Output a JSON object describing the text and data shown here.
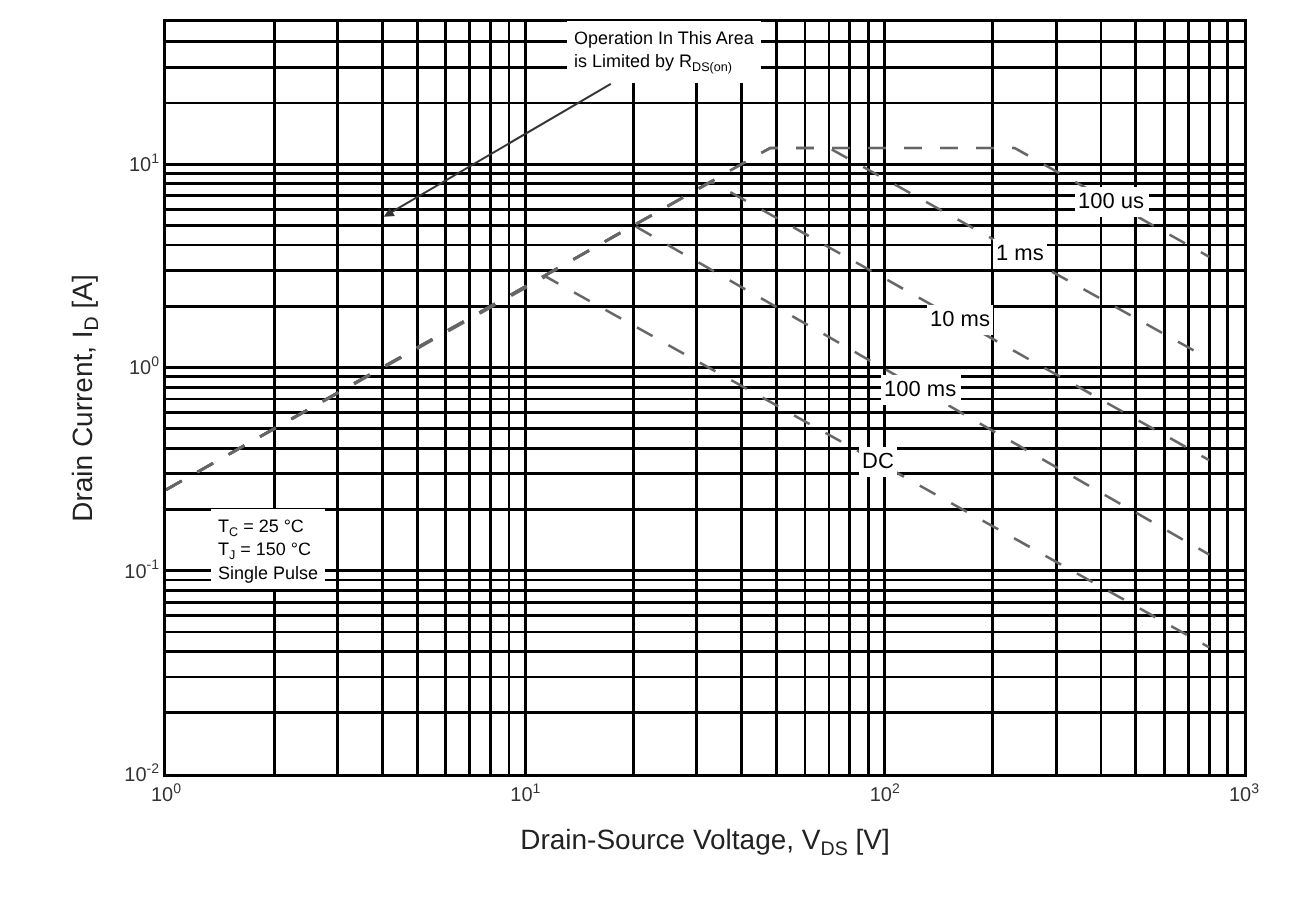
{
  "chart_data": {
    "type": "line",
    "xlabel": "Drain-Source Voltage, V$_{DS}$ [V]",
    "ylabel": "Drain Current, I$_{D}$ [A]",
    "log": "xy",
    "xlim": [
      1,
      1000
    ],
    "ylim": [
      0.01,
      50
    ],
    "xticks": [
      {
        "value": 1,
        "label": "10$^{0}$"
      },
      {
        "value": 10,
        "label": "10$^{1}$"
      },
      {
        "value": 100,
        "label": "10$^{2}$"
      },
      {
        "value": 1000,
        "label": "10$^{3}$"
      }
    ],
    "yticks": [
      {
        "value": 0.01,
        "label": "10$^{-2}$"
      },
      {
        "value": 0.1,
        "label": "10$^{-1}$"
      },
      {
        "value": 1,
        "label": "10$^{0}$"
      },
      {
        "value": 10,
        "label": "10$^{1}$"
      }
    ],
    "grid": true,
    "legend": false,
    "marker": "none",
    "line_style": "dashed",
    "series": [
      {
        "name": "100 us",
        "color": "#666666",
        "x": [
          1,
          48,
          230,
          800
        ],
        "values": [
          0.25,
          12,
          12,
          3.5
        ]
      },
      {
        "name": "1 ms",
        "color": "#666666",
        "x": [
          1,
          48,
          70,
          800
        ],
        "values": [
          0.25,
          12,
          12,
          1.1
        ]
      },
      {
        "name": "10 ms",
        "color": "#666666",
        "x": [
          1,
          33,
          800
        ],
        "values": [
          0.25,
          8.2,
          0.35
        ]
      },
      {
        "name": "100 ms",
        "color": "#666666",
        "x": [
          1,
          20,
          800
        ],
        "values": [
          0.25,
          5,
          0.12
        ]
      },
      {
        "name": "DC",
        "color": "#666666",
        "x": [
          1,
          11.4,
          800
        ],
        "values": [
          0.25,
          2.8,
          0.042
        ]
      }
    ],
    "annotations": [
      "Operation In This Area\nis Limited by R$_{DS(on)}$",
      "T$_{C}$ = 25 °C",
      "T$_{J}$ = 150 °C",
      "Single Pulse"
    ]
  }
}
